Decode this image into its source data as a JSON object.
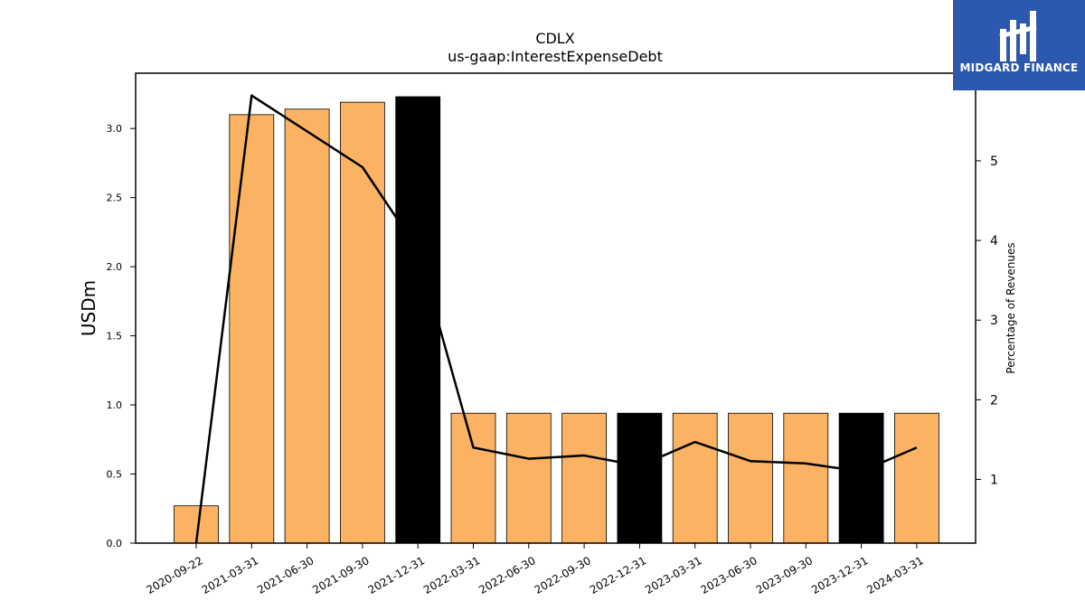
{
  "brand": {
    "name": "MIDGARD FINANCE",
    "icon": "mf-monogram-icon",
    "bg_color": "#2c59ad",
    "fg_color": "#ffffff"
  },
  "chart_data": {
    "type": "bar",
    "title": "CDLX",
    "subtitle": "us-gaap:InterestExpenseDebt",
    "ylabel": "USDm",
    "y2label": "Percentage of Revenues",
    "categories": [
      "2020-09-22",
      "2021-03-31",
      "2021-06-30",
      "2021-09-30",
      "2021-12-31",
      "2022-03-31",
      "2022-06-30",
      "2022-09-30",
      "2022-12-31",
      "2023-03-31",
      "2023-06-30",
      "2023-09-30",
      "2023-12-31",
      "2024-03-31"
    ],
    "series": [
      {
        "type": "bar",
        "axis": "left",
        "values": [
          0.27,
          3.1,
          3.14,
          3.19,
          3.23,
          0.94,
          0.94,
          0.94,
          0.94,
          0.94,
          0.94,
          0.94,
          0.94,
          0.94
        ],
        "colors": [
          "#fbb262",
          "#fbb262",
          "#fbb262",
          "#fbb262",
          "#000000",
          "#fbb262",
          "#fbb262",
          "#fbb262",
          "#000000",
          "#fbb262",
          "#fbb262",
          "#fbb262",
          "#000000",
          "#fbb262"
        ]
      },
      {
        "type": "line",
        "axis": "right",
        "values": [
          0.2,
          5.82,
          5.37,
          4.92,
          3.88,
          1.4,
          1.26,
          1.3,
          1.17,
          1.47,
          1.23,
          1.2,
          1.1,
          1.4
        ],
        "color": "#000000"
      }
    ],
    "ylim": [
      0,
      3.4
    ],
    "yticks": [
      0.0,
      0.5,
      1.0,
      1.5,
      2.0,
      2.5,
      3.0
    ],
    "y2lim": [
      0.2,
      6.1
    ],
    "y2ticks": [
      1,
      2,
      3,
      4,
      5
    ],
    "grid": false,
    "legend": "none"
  }
}
